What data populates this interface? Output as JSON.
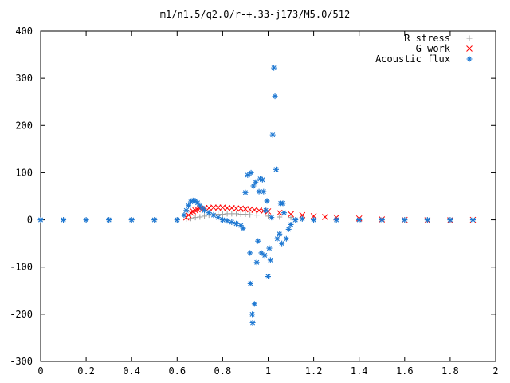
{
  "chart_data": {
    "type": "scatter",
    "title": "m1/n1.5/q2.0/r-+.33-j173/M5.0/512",
    "xlabel": "",
    "ylabel": "",
    "xlim": [
      0,
      2
    ],
    "ylim": [
      -300,
      400
    ],
    "xticks": [
      0,
      0.2,
      0.4,
      0.6,
      0.8,
      1,
      1.2,
      1.4,
      1.6,
      1.8,
      2
    ],
    "xtick_labels": [
      "0",
      "0.2",
      "0.4",
      "0.6",
      "0.8",
      "1",
      "1.2",
      "1.4",
      "1.6",
      "1.8",
      "2"
    ],
    "yticks": [
      -300,
      -200,
      -100,
      0,
      100,
      200,
      300,
      400
    ],
    "ytick_labels": [
      "-300",
      "-200",
      "-100",
      "0",
      "100",
      "200",
      "300",
      "400"
    ],
    "grid": false,
    "legend_position": "top-right",
    "series": [
      {
        "name": "R stress",
        "marker": "plus",
        "color": "#a0a0a0",
        "x": [
          0.0,
          0.1,
          0.2,
          0.3,
          0.4,
          0.5,
          0.6,
          0.64,
          0.66,
          0.68,
          0.7,
          0.72,
          0.74,
          0.76,
          0.78,
          0.8,
          0.82,
          0.84,
          0.86,
          0.88,
          0.9,
          0.92,
          0.95,
          1.0,
          1.05,
          1.1,
          1.15,
          1.2,
          1.3,
          1.4,
          1.5,
          1.6,
          1.7,
          1.8,
          1.9
        ],
        "y": [
          0,
          0,
          0,
          0,
          0,
          0,
          0,
          2,
          3,
          5,
          6,
          8,
          10,
          11,
          12,
          12,
          13,
          13,
          13,
          12,
          12,
          11,
          10,
          8,
          6,
          5,
          3,
          2,
          1,
          0,
          0,
          0,
          0,
          0,
          0
        ]
      },
      {
        "name": "G work",
        "marker": "x",
        "color": "#ff0000",
        "x": [
          0.64,
          0.65,
          0.66,
          0.67,
          0.68,
          0.69,
          0.7,
          0.72,
          0.74,
          0.76,
          0.78,
          0.8,
          0.82,
          0.84,
          0.86,
          0.88,
          0.9,
          0.92,
          0.94,
          0.96,
          0.98,
          1.0,
          1.05,
          1.1,
          1.15,
          1.2,
          1.25,
          1.3,
          1.4,
          1.5,
          1.6,
          1.7,
          1.8,
          1.9
        ],
        "y": [
          5,
          10,
          15,
          18,
          20,
          22,
          24,
          25,
          25,
          26,
          26,
          26,
          25,
          25,
          24,
          24,
          23,
          22,
          21,
          20,
          19,
          18,
          15,
          12,
          10,
          8,
          6,
          5,
          3,
          1,
          0,
          -1,
          -1,
          0
        ]
      },
      {
        "name": "Acoustic flux",
        "marker": "star",
        "color": "#1e78d2",
        "x": [
          0.0,
          0.1,
          0.2,
          0.3,
          0.4,
          0.5,
          0.6,
          0.63,
          0.64,
          0.65,
          0.66,
          0.67,
          0.68,
          0.69,
          0.7,
          0.71,
          0.72,
          0.74,
          0.76,
          0.78,
          0.8,
          0.82,
          0.84,
          0.86,
          0.88,
          0.89,
          0.9,
          0.91,
          0.92,
          0.922,
          0.925,
          0.93,
          0.932,
          0.935,
          0.94,
          0.945,
          0.95,
          0.955,
          0.96,
          0.965,
          0.97,
          0.975,
          0.98,
          0.985,
          0.99,
          0.995,
          1.0,
          1.005,
          1.01,
          1.015,
          1.02,
          1.025,
          1.03,
          1.035,
          1.04,
          1.05,
          1.055,
          1.06,
          1.065,
          1.07,
          1.08,
          1.09,
          1.1,
          1.12,
          1.15,
          1.2,
          1.3,
          1.4,
          1.5,
          1.6,
          1.7,
          1.8,
          1.9
        ],
        "y": [
          0,
          0,
          0,
          0,
          0,
          0,
          0,
          10,
          20,
          30,
          38,
          41,
          40,
          36,
          30,
          25,
          20,
          15,
          10,
          5,
          0,
          -2,
          -5,
          -8,
          -12,
          -18,
          58,
          95,
          -70,
          -135,
          100,
          -200,
          -218,
          72,
          -178,
          80,
          -90,
          -45,
          60,
          87,
          -70,
          85,
          60,
          -75,
          20,
          40,
          -120,
          -60,
          -85,
          5,
          180,
          322,
          262,
          107,
          -40,
          -30,
          35,
          -50,
          35,
          15,
          -40,
          -20,
          -10,
          0,
          2,
          0,
          0,
          0,
          0,
          0,
          0,
          0,
          0
        ]
      }
    ]
  }
}
